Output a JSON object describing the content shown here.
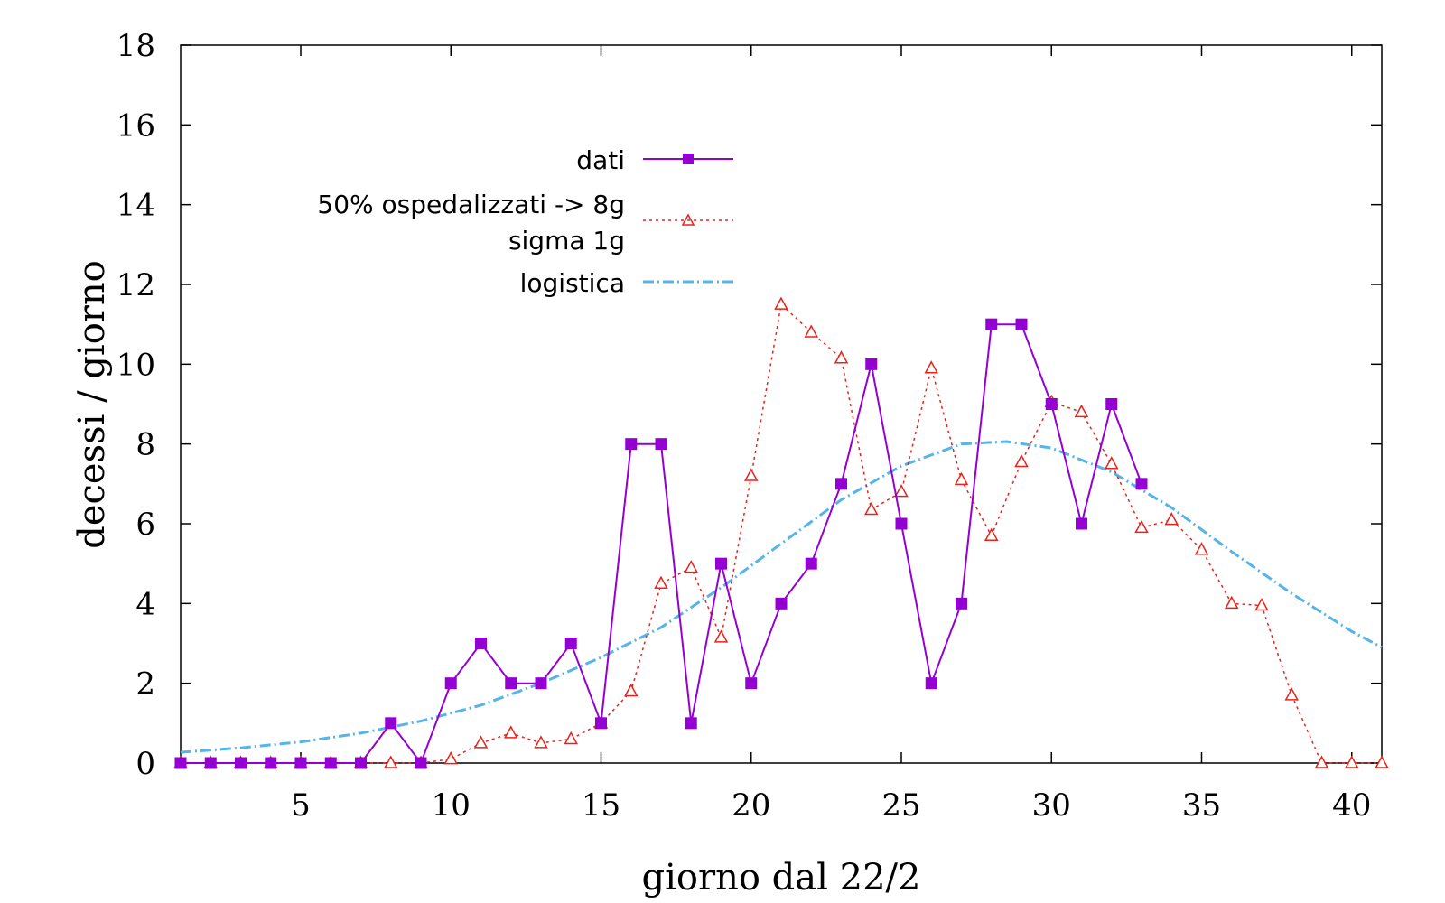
{
  "chart_data": {
    "type": "line",
    "xlabel": "giorno dal 22/2",
    "ylabel": "decessi / giorno",
    "xlim": [
      1,
      41
    ],
    "ylim": [
      0,
      18
    ],
    "x_ticks": [
      5,
      10,
      15,
      20,
      25,
      30,
      35,
      40
    ],
    "y_ticks": [
      0,
      2,
      4,
      6,
      8,
      10,
      12,
      14,
      16,
      18
    ],
    "grid": false,
    "legend_position": "upper-left-center",
    "series": [
      {
        "name": "dati",
        "color": "#9400d3",
        "marker": "filled-square",
        "line": "solid",
        "x": [
          1,
          2,
          3,
          4,
          5,
          6,
          7,
          8,
          9,
          10,
          11,
          12,
          13,
          14,
          15,
          16,
          17,
          18,
          19,
          20,
          21,
          22,
          23,
          24,
          25,
          26,
          27,
          28,
          29,
          30,
          31,
          32,
          33
        ],
        "y": [
          0,
          0,
          0,
          0,
          0,
          0,
          0,
          1,
          0,
          2,
          3,
          2,
          2,
          3,
          1,
          8,
          8,
          1,
          5,
          2,
          4,
          5,
          7,
          10,
          6,
          2,
          4,
          11,
          11,
          9,
          6,
          9,
          7
        ]
      },
      {
        "name_lines": [
          "50% ospedalizzati -> 8g",
          "sigma 1g"
        ],
        "color": "#e8231a",
        "marker": "open-triangle",
        "line": "dotted",
        "x": [
          1,
          2,
          3,
          4,
          5,
          6,
          7,
          8,
          9,
          10,
          11,
          12,
          13,
          14,
          15,
          16,
          17,
          18,
          19,
          20,
          21,
          22,
          23,
          24,
          25,
          26,
          27,
          28,
          29,
          30,
          31,
          32,
          33,
          34,
          35,
          36,
          37,
          38,
          39,
          40,
          41
        ],
        "y": [
          0,
          0,
          0,
          0,
          0,
          0,
          0,
          0,
          0,
          0.1,
          0.5,
          0.75,
          0.5,
          0.6,
          1.0,
          1.8,
          4.5,
          4.9,
          3.15,
          7.2,
          11.5,
          10.8,
          10.15,
          6.35,
          6.8,
          9.9,
          7.1,
          5.7,
          7.55,
          9.05,
          8.8,
          7.5,
          5.9,
          6.1,
          5.35,
          4.0,
          3.95,
          1.7,
          0,
          0,
          0
        ]
      },
      {
        "name": "logistica",
        "color": "#56b4e9",
        "marker": "none",
        "line": "dash-dot",
        "x": [
          1,
          3,
          5,
          7,
          9,
          11,
          13,
          15,
          17,
          19,
          21,
          23,
          25,
          27,
          28.5,
          30,
          32,
          34,
          36,
          38,
          40,
          41
        ],
        "y": [
          0.27,
          0.38,
          0.53,
          0.75,
          1.05,
          1.45,
          2.0,
          2.65,
          3.4,
          4.4,
          5.5,
          6.6,
          7.45,
          8.0,
          8.06,
          7.9,
          7.3,
          6.4,
          5.3,
          4.25,
          3.3,
          2.9
        ]
      }
    ]
  }
}
